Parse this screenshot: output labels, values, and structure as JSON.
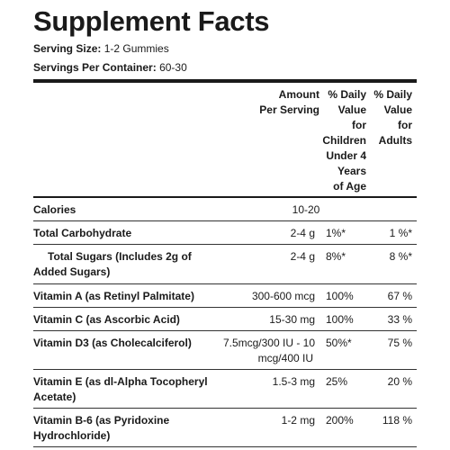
{
  "title": "Supplement Facts",
  "serving_size": {
    "label": "Serving Size:",
    "value": "1-2 Gummies"
  },
  "servings_per_container": {
    "label": "Servings Per Container:",
    "value": "60-30"
  },
  "headers": {
    "amount": [
      "Amount",
      "Per Serving"
    ],
    "children": [
      "% Daily",
      "Value",
      "for",
      "Children",
      "Under 4",
      "Years",
      "of Age"
    ],
    "adults": [
      "% Daily",
      "Value",
      "for",
      "Adults"
    ]
  },
  "rows": [
    {
      "name": [
        "Calories"
      ],
      "amount": [
        "10-20"
      ],
      "children": "",
      "adults": ""
    },
    {
      "name": [
        "Total Carbohydrate"
      ],
      "amount": [
        "2-4 g"
      ],
      "children": "1%*",
      "adults": "1 %*"
    },
    {
      "name": [
        "Total Sugars (Includes 2g of",
        "Added Sugars)"
      ],
      "amount": [
        "2-4 g"
      ],
      "children": "8%*",
      "adults": "8 %*"
    },
    {
      "name": [
        "Vitamin A (as Retinyl Palmitate)"
      ],
      "amount": [
        "300-600 mcg"
      ],
      "children": "100%",
      "adults": "67 %"
    },
    {
      "name": [
        "Vitamin C (as Ascorbic Acid)"
      ],
      "amount": [
        "15-30 mg"
      ],
      "children": "100%",
      "adults": "33 %"
    },
    {
      "name": [
        "Vitamin D3 (as Cholecalciferol)"
      ],
      "amount": [
        "7.5mcg/300 IU - 10",
        "mcg/400 IU"
      ],
      "children": "50%*",
      "adults": "75 %"
    },
    {
      "name": [
        "Vitamin E (as dl-Alpha Tocopheryl",
        "Acetate)"
      ],
      "amount": [
        "1.5-3 mg"
      ],
      "children": "25%",
      "adults": "20 %"
    },
    {
      "name": [
        "Vitamin B-6 (as Pyridoxine",
        "Hydrochloride)"
      ],
      "amount": [
        "1-2 mg"
      ],
      "children": "200%",
      "adults": "118 %"
    }
  ]
}
